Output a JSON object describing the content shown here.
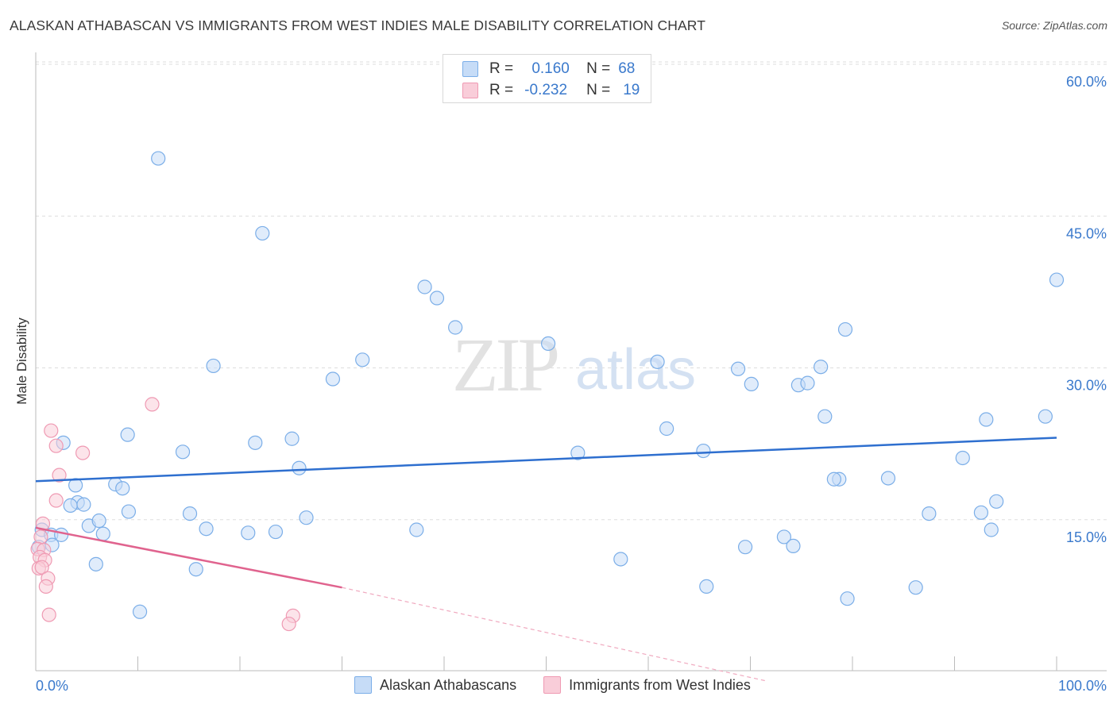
{
  "header": {
    "title": "ALASKAN ATHABASCAN VS IMMIGRANTS FROM WEST INDIES MALE DISABILITY CORRELATION CHART",
    "source": "Source: ZipAtlas.com"
  },
  "watermark": {
    "zip": "ZIP",
    "atlas": "atlas"
  },
  "legend_top": [
    {
      "r_label": "R =",
      "r_value": "0.160",
      "n_label": "N =",
      "n_value": "68",
      "color": "#7baee8"
    },
    {
      "r_label": "R =",
      "r_value": "-0.232",
      "n_label": "N =",
      "n_value": "19",
      "color": "#ef9ab3"
    }
  ],
  "chart_data": {
    "type": "scatter",
    "title": "ALASKAN ATHABASCAN VS IMMIGRANTS FROM WEST INDIES MALE DISABILITY CORRELATION CHART",
    "xlabel": "",
    "ylabel": "Male Disability",
    "xlim": [
      0,
      100
    ],
    "ylim": [
      0,
      62
    ],
    "x_tick_labels": [
      "0.0%",
      "100.0%"
    ],
    "y_ticks": [
      15,
      30,
      45,
      60
    ],
    "y_tick_labels": [
      "15.0%",
      "30.0%",
      "45.0%",
      "60.0%"
    ],
    "grid": "horizontal dashed",
    "legend_placement": "bottom",
    "series": [
      {
        "name": "Alaskan Athabascans",
        "color": "#7baee8",
        "fill": "#c6dcf7",
        "trend": {
          "x": [
            0,
            100
          ],
          "y": [
            18.8,
            23.1
          ],
          "style": "solid"
        },
        "points": [
          {
            "x": 12.0,
            "y": 50.7
          },
          {
            "x": 22.2,
            "y": 43.3
          },
          {
            "x": 38.1,
            "y": 38.0
          },
          {
            "x": 39.3,
            "y": 36.9
          },
          {
            "x": 41.1,
            "y": 34.0
          },
          {
            "x": 100.0,
            "y": 38.7
          },
          {
            "x": 79.3,
            "y": 33.8
          },
          {
            "x": 50.2,
            "y": 32.4
          },
          {
            "x": 17.4,
            "y": 30.2
          },
          {
            "x": 32.0,
            "y": 30.8
          },
          {
            "x": 29.1,
            "y": 28.9
          },
          {
            "x": 60.9,
            "y": 30.6
          },
          {
            "x": 76.9,
            "y": 30.1
          },
          {
            "x": 68.8,
            "y": 29.9
          },
          {
            "x": 70.1,
            "y": 28.4
          },
          {
            "x": 74.7,
            "y": 28.3
          },
          {
            "x": 75.6,
            "y": 28.5
          },
          {
            "x": 77.3,
            "y": 25.2
          },
          {
            "x": 93.1,
            "y": 24.9
          },
          {
            "x": 98.9,
            "y": 25.2
          },
          {
            "x": 2.7,
            "y": 22.6
          },
          {
            "x": 9.0,
            "y": 23.4
          },
          {
            "x": 14.4,
            "y": 21.7
          },
          {
            "x": 25.1,
            "y": 23.0
          },
          {
            "x": 21.5,
            "y": 22.6
          },
          {
            "x": 61.8,
            "y": 24.0
          },
          {
            "x": 53.1,
            "y": 21.6
          },
          {
            "x": 65.4,
            "y": 21.8
          },
          {
            "x": 25.8,
            "y": 20.1
          },
          {
            "x": 90.8,
            "y": 21.1
          },
          {
            "x": 3.9,
            "y": 18.4
          },
          {
            "x": 7.8,
            "y": 18.5
          },
          {
            "x": 8.5,
            "y": 18.1
          },
          {
            "x": 78.7,
            "y": 19.0
          },
          {
            "x": 78.2,
            "y": 19.0
          },
          {
            "x": 83.5,
            "y": 19.1
          },
          {
            "x": 4.1,
            "y": 16.7
          },
          {
            "x": 3.4,
            "y": 16.4
          },
          {
            "x": 4.7,
            "y": 16.5
          },
          {
            "x": 9.1,
            "y": 15.8
          },
          {
            "x": 15.1,
            "y": 15.6
          },
          {
            "x": 26.5,
            "y": 15.2
          },
          {
            "x": 87.5,
            "y": 15.6
          },
          {
            "x": 92.6,
            "y": 15.7
          },
          {
            "x": 94.1,
            "y": 16.8
          },
          {
            "x": 0.6,
            "y": 14.0
          },
          {
            "x": 1.5,
            "y": 13.5
          },
          {
            "x": 2.5,
            "y": 13.5
          },
          {
            "x": 5.2,
            "y": 14.4
          },
          {
            "x": 6.2,
            "y": 14.9
          },
          {
            "x": 6.6,
            "y": 13.6
          },
          {
            "x": 16.7,
            "y": 14.1
          },
          {
            "x": 20.8,
            "y": 13.7
          },
          {
            "x": 23.5,
            "y": 13.8
          },
          {
            "x": 37.3,
            "y": 14.0
          },
          {
            "x": 93.6,
            "y": 14.0
          },
          {
            "x": 0.3,
            "y": 12.3
          },
          {
            "x": 1.6,
            "y": 12.5
          },
          {
            "x": 73.3,
            "y": 13.3
          },
          {
            "x": 74.2,
            "y": 12.4
          },
          {
            "x": 69.5,
            "y": 12.3
          },
          {
            "x": 5.9,
            "y": 10.6
          },
          {
            "x": 15.7,
            "y": 10.1
          },
          {
            "x": 57.3,
            "y": 11.1
          },
          {
            "x": 65.7,
            "y": 8.4
          },
          {
            "x": 86.2,
            "y": 8.3
          },
          {
            "x": 79.5,
            "y": 7.2
          },
          {
            "x": 10.2,
            "y": 5.9
          }
        ]
      },
      {
        "name": "Immigrants from West Indies",
        "color": "#ef9ab3",
        "fill": "#f9cdd9",
        "trend": {
          "x": [
            0,
            30
          ],
          "y": [
            14.2,
            8.3
          ],
          "style": "solid",
          "extension": {
            "x": [
              30,
              71.6
            ],
            "y": [
              8.3,
              0.0
            ],
            "style": "dashed"
          }
        },
        "points": [
          {
            "x": 11.4,
            "y": 26.4
          },
          {
            "x": 1.5,
            "y": 23.8
          },
          {
            "x": 2.0,
            "y": 22.3
          },
          {
            "x": 4.6,
            "y": 21.6
          },
          {
            "x": 2.3,
            "y": 19.4
          },
          {
            "x": 2.0,
            "y": 16.9
          },
          {
            "x": 0.7,
            "y": 14.6
          },
          {
            "x": 0.5,
            "y": 13.3
          },
          {
            "x": 0.2,
            "y": 12.1
          },
          {
            "x": 0.8,
            "y": 12.0
          },
          {
            "x": 0.4,
            "y": 11.3
          },
          {
            "x": 0.9,
            "y": 11.0
          },
          {
            "x": 0.3,
            "y": 10.2
          },
          {
            "x": 0.6,
            "y": 10.3
          },
          {
            "x": 1.2,
            "y": 9.2
          },
          {
            "x": 1.0,
            "y": 8.4
          },
          {
            "x": 1.3,
            "y": 5.6
          },
          {
            "x": 25.2,
            "y": 5.5
          },
          {
            "x": 24.8,
            "y": 4.7
          }
        ]
      }
    ]
  }
}
